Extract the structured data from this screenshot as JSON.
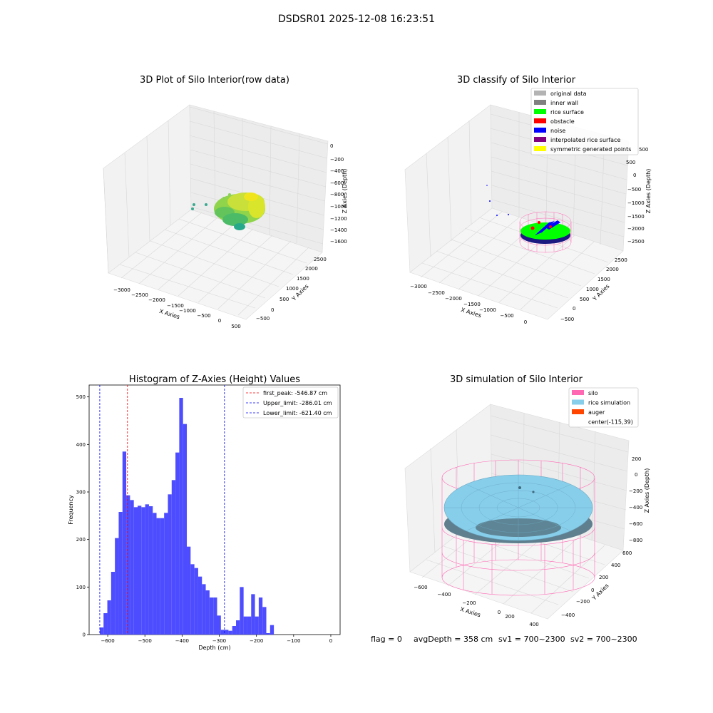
{
  "figure": {
    "suptitle": "DSDSR01 2025-12-08 16:23:51",
    "status": {
      "flag": "flag = 0",
      "avg_depth": "avgDepth = 358 cm",
      "sv1": "sv1 = 700~2300",
      "sv2": "sv2 = 700~2300"
    }
  },
  "colors": {
    "histogram_bar": "#4d4dff",
    "first_peak_line": "#ff0000",
    "limit_lines": "#0000ff",
    "rice_surface": "#00ff00",
    "noise": "#0000ff",
    "silo": "#ff69b4",
    "rice_simulation": "#87ceeb",
    "auger": "#ff4500"
  },
  "panels": {
    "raw": {
      "title": "3D Plot of Silo Interior(row data)",
      "xlabel": "X Axies",
      "ylabel": "Y Axies",
      "zlabel": "Z Axies (Depth)",
      "xticks": [
        "−3000",
        "−2500",
        "−2000",
        "−1500",
        "−1000",
        "−500",
        "0",
        "500"
      ],
      "yticks": [
        "−500",
        "0",
        "500",
        "1000",
        "1500",
        "2000",
        "2500"
      ],
      "zticks": [
        "0",
        "−200",
        "−400",
        "−600",
        "−800",
        "−1000",
        "−1200",
        "−1400",
        "−1600"
      ]
    },
    "classify": {
      "title": "3D classify of Silo Interior",
      "xlabel": "X Axies",
      "ylabel": "Y Axies",
      "zlabel": "Z Axies (Depth)",
      "xticks": [
        "−3000",
        "−2500",
        "−2000",
        "−1500",
        "−1000",
        "−500",
        "0"
      ],
      "yticks": [
        "−500",
        "0",
        "500",
        "1000",
        "1500",
        "2000",
        "2500"
      ],
      "zticks": [
        "500",
        "0",
        "−500",
        "−1000",
        "−1500",
        "−2000",
        "−2500"
      ],
      "ztick_partial": "500",
      "legend": [
        {
          "label": "original data",
          "color": "#b3b3b3"
        },
        {
          "label": "inner wall",
          "color": "#808080"
        },
        {
          "label": "rice surface",
          "color": "#00ff00"
        },
        {
          "label": "obstacle",
          "color": "#ff0000"
        },
        {
          "label": "noise",
          "color": "#0000ff"
        },
        {
          "label": "interpolated rice surface",
          "color": "#800080"
        },
        {
          "label": "symmetric generated points",
          "color": "#ffff00"
        }
      ]
    },
    "simulation": {
      "title": "3D simulation of Silo Interior",
      "xlabel": "X Axies",
      "ylabel": "Y Axies",
      "zlabel": "Z Axies (Depth)",
      "xticks": [
        "−600",
        "−400",
        "−200",
        "0",
        "200",
        "400"
      ],
      "yticks": [
        "−400",
        "−200",
        "0",
        "200",
        "400",
        "600"
      ],
      "zticks": [
        "200",
        "0",
        "−200",
        "−400",
        "−600",
        "−800"
      ],
      "legend": [
        {
          "label": "silo",
          "color": "#ff69b4"
        },
        {
          "label": "rice simulation",
          "color": "#87ceeb"
        },
        {
          "label": "auger",
          "color": "#ff4500"
        },
        {
          "label": "center(-115,39)",
          "color": ""
        }
      ]
    }
  },
  "chart_data": [
    {
      "type": "bar",
      "title": "Histogram of Z-Axies (Height) Values",
      "xlabel": "Depth (cm)",
      "ylabel": "Frequency",
      "xlim": [
        -650,
        25
      ],
      "ylim": [
        0,
        525
      ],
      "xticks": [
        -600,
        -500,
        -400,
        -300,
        -200,
        -100,
        0
      ],
      "xtick_labels": [
        "−600",
        "−500",
        "−400",
        "−300",
        "−200",
        "−100",
        "0"
      ],
      "yticks": [
        0,
        100,
        200,
        300,
        400,
        500
      ],
      "bin_start": -621.4,
      "bin_width": 10.18,
      "values": [
        15,
        45,
        72,
        132,
        203,
        258,
        385,
        293,
        283,
        268,
        271,
        268,
        274,
        270,
        256,
        245,
        245,
        256,
        295,
        325,
        383,
        498,
        443,
        185,
        148,
        140,
        122,
        106,
        93,
        78,
        78,
        40,
        10,
        10,
        8,
        18,
        30,
        100,
        38,
        38,
        85,
        38,
        78,
        58,
        3,
        20
      ],
      "lines": [
        {
          "name": "first_peak: -546.87 cm",
          "value": -546.87,
          "color": "#ff0000"
        },
        {
          "name": "Upper_limit: -286.01 cm",
          "value": -286.01,
          "color": "#0000ff"
        },
        {
          "name": "Lower_limit: -621.40 cm",
          "value": -621.4,
          "color": "#0000ff"
        }
      ],
      "legend_position": "upper right"
    }
  ]
}
